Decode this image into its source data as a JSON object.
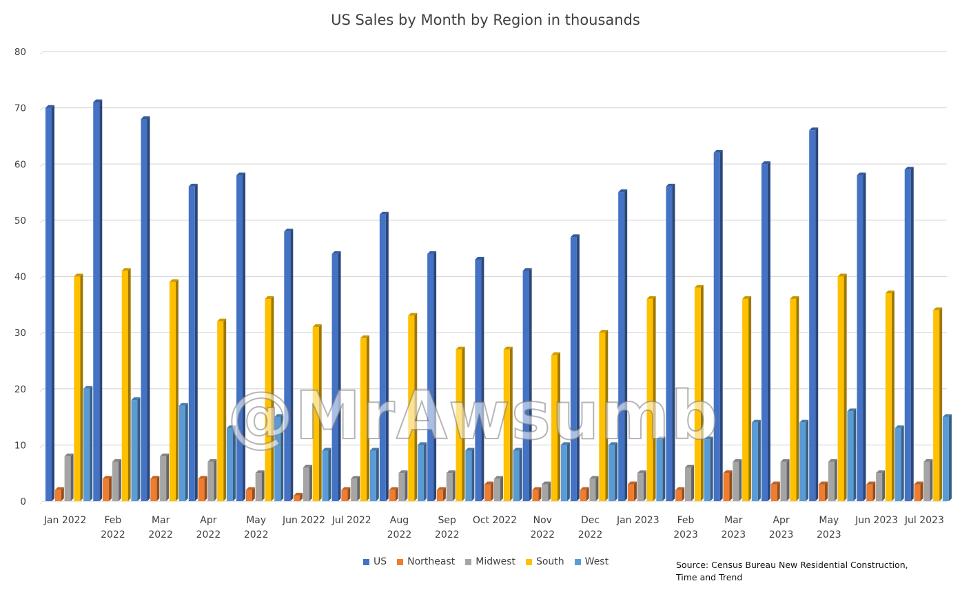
{
  "chart_data": {
    "type": "bar",
    "title": "US Sales by Month by Region in thousands",
    "categories": [
      [
        "Jan 2022"
      ],
      [
        "Feb",
        "2022"
      ],
      [
        "Mar",
        "2022"
      ],
      [
        "Apr",
        "2022"
      ],
      [
        "May",
        "2022"
      ],
      [
        "Jun 2022"
      ],
      [
        "Jul 2022"
      ],
      [
        "Aug",
        "2022"
      ],
      [
        "Sep",
        "2022"
      ],
      [
        "Oct 2022"
      ],
      [
        "Nov",
        "2022"
      ],
      [
        "Dec",
        "2022"
      ],
      [
        "Jan 2023"
      ],
      [
        "Feb",
        "2023"
      ],
      [
        "Mar",
        "2023"
      ],
      [
        "Apr",
        "2023"
      ],
      [
        "May",
        "2023"
      ],
      [
        "Jun 2023"
      ],
      [
        "Jul 2023"
      ]
    ],
    "series": [
      {
        "name": "US",
        "color": "#4472C4",
        "values": [
          70,
          71,
          68,
          56,
          58,
          48,
          44,
          51,
          44,
          43,
          41,
          47,
          55,
          56,
          62,
          60,
          66,
          58,
          59
        ]
      },
      {
        "name": "Northeast",
        "color": "#ED7D31",
        "values": [
          2,
          4,
          4,
          4,
          2,
          1,
          2,
          2,
          2,
          3,
          2,
          2,
          3,
          2,
          5,
          3,
          3,
          3,
          3
        ]
      },
      {
        "name": "Midwest",
        "color": "#A5A5A5",
        "values": [
          8,
          7,
          8,
          7,
          5,
          6,
          4,
          5,
          5,
          4,
          3,
          4,
          5,
          6,
          7,
          7,
          7,
          5,
          7
        ]
      },
      {
        "name": "South",
        "color": "#FFC000",
        "values": [
          40,
          41,
          39,
          32,
          36,
          31,
          29,
          33,
          27,
          27,
          26,
          30,
          36,
          38,
          36,
          36,
          40,
          37,
          34
        ]
      },
      {
        "name": "West",
        "color": "#5B9BD5",
        "values": [
          20,
          18,
          17,
          13,
          15,
          9,
          9,
          10,
          9,
          9,
          10,
          10,
          11,
          11,
          14,
          14,
          16,
          13,
          15
        ]
      }
    ],
    "yticks": [
      0,
      10,
      20,
      30,
      40,
      50,
      60,
      70,
      80
    ],
    "ylim": [
      0,
      80
    ],
    "grid": true,
    "legend_position": "bottom"
  },
  "source": [
    "Source: Census Bureau New Residential Construction,",
    "Time and Trend"
  ],
  "watermark": "@MrAwsumb"
}
